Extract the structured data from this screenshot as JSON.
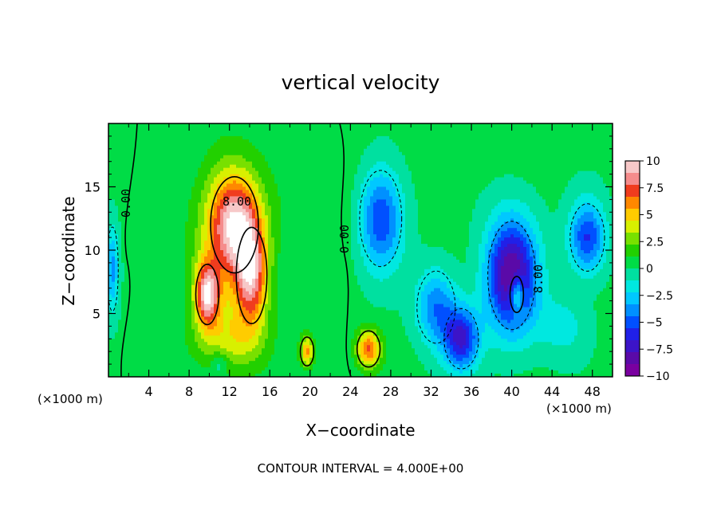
{
  "chart_data": {
    "type": "heatmap",
    "title": "vertical velocity",
    "xlabel": "X−coordinate",
    "ylabel": "Z−coordinate",
    "x_unit_left": "(×1000 m)",
    "x_unit_right": "(×1000 m)",
    "xlim": [
      0,
      50
    ],
    "ylim": [
      0,
      20
    ],
    "x_ticks": [
      4,
      8,
      12,
      16,
      20,
      24,
      28,
      32,
      36,
      40,
      44,
      48
    ],
    "x_tick_labels": [
      "4",
      "8",
      "12",
      "16",
      "20",
      "24",
      "28",
      "32",
      "36",
      "40",
      "44",
      "48"
    ],
    "y_ticks": [
      5,
      10,
      15
    ],
    "y_tick_labels": [
      "5",
      "10",
      "15"
    ],
    "colorbar": {
      "range": [
        -10,
        10
      ],
      "ticks": [
        10,
        7.5,
        5,
        2.5,
        0,
        -2.5,
        -5,
        -7.5,
        -10
      ],
      "tick_labels": [
        "10",
        "7.5",
        "5",
        "2.5",
        "0",
        "−2.5",
        "−5",
        "−7.5",
        "−10"
      ],
      "colors": [
        "#f7c8c8",
        "#f58c8c",
        "#f03c1e",
        "#ff8800",
        "#ffcc00",
        "#d8f000",
        "#78e000",
        "#22d000",
        "#00dc46",
        "#00e0a0",
        "#00e8e0",
        "#00c8ff",
        "#0090ff",
        "#0050ff",
        "#2020e8",
        "#3c14c8",
        "#5a0aa8",
        "#7a00a0"
      ]
    },
    "contour_labels": [
      "0.00",
      "8.00",
      "0.00",
      "8.00"
    ],
    "contour_interval_text": "CONTOUR INTERVAL =  4.000E+00",
    "cells": [
      {
        "x": 11.5,
        "z": 10.5,
        "w": 2.2,
        "rx": 3.4,
        "rz": 7
      },
      {
        "x": 12.5,
        "z": 12.0,
        "w": 8.0,
        "rx": 2.5,
        "rz": 4
      },
      {
        "x": 14.2,
        "z": 8.0,
        "w": 7.5,
        "rx": 1.6,
        "rz": 4
      },
      {
        "x": 9.8,
        "z": 6.5,
        "w": 8.5,
        "rx": 1.2,
        "rz": 2.5
      },
      {
        "x": 12.0,
        "z": 3.0,
        "w": 3.0,
        "rx": 3.5,
        "rz": 2.5
      },
      {
        "x": 25.8,
        "z": 2.2,
        "w": 6.5,
        "rx": 1.2,
        "rz": 1.5
      },
      {
        "x": 19.7,
        "z": 2.0,
        "w": 5.5,
        "rx": 0.7,
        "rz": 1.2
      },
      {
        "x": 11.0,
        "z": 1.0,
        "w": -2.0,
        "rx": 0.8,
        "rz": 1.0
      },
      {
        "x": 27.0,
        "z": 12.5,
        "w": -6.0,
        "rx": 2.2,
        "rz": 4.0
      },
      {
        "x": 32.5,
        "z": 5.5,
        "w": -4.5,
        "rx": 2.0,
        "rz": 3.0
      },
      {
        "x": 35.0,
        "z": 3.0,
        "w": -7.0,
        "rx": 1.8,
        "rz": 2.5
      },
      {
        "x": 40.0,
        "z": 8.0,
        "w": -9.5,
        "rx": 2.5,
        "rz": 4.5
      },
      {
        "x": 40.5,
        "z": 6.5,
        "w": 5.0,
        "rx": 0.7,
        "rz": 1.5
      },
      {
        "x": 47.5,
        "z": 11.0,
        "w": -6.0,
        "rx": 1.8,
        "rz": 2.8
      },
      {
        "x": 0.4,
        "z": 8.5,
        "w": -4.0,
        "rx": 0.6,
        "rz": 3.5
      },
      {
        "x": 45.0,
        "z": 4.0,
        "w": -2.0,
        "rx": 2.5,
        "rz": 2.5
      },
      {
        "x": 22.0,
        "z": 14.0,
        "w": 0.8,
        "rx": 5.0,
        "rz": 5.0
      }
    ]
  }
}
